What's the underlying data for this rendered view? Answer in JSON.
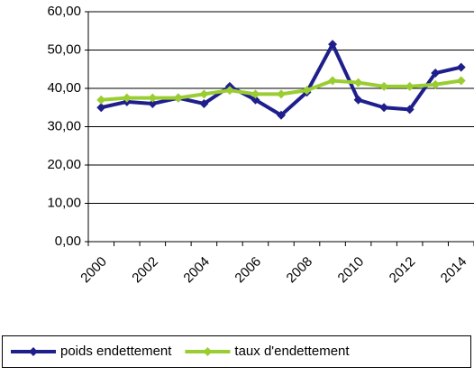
{
  "chart_data": {
    "type": "line",
    "categories": [
      "2000",
      null,
      "2002",
      null,
      "2004",
      null,
      "2006",
      null,
      "2008",
      null,
      "2010",
      null,
      "2012",
      null,
      "2014"
    ],
    "series": [
      {
        "name": "poids endettement",
        "color": "#1f1f8c",
        "values": [
          35,
          36.5,
          36,
          37.5,
          36,
          40.5,
          37,
          33,
          39,
          51.5,
          37,
          35,
          34.5,
          44,
          45.5
        ]
      },
      {
        "name": "taux d'endettement",
        "color": "#9acd32",
        "values": [
          37,
          37.5,
          37.5,
          37.5,
          38.5,
          39.5,
          38.5,
          38.5,
          39.5,
          42,
          41.5,
          40.5,
          40.5,
          41,
          42
        ]
      }
    ],
    "ylim": [
      0,
      60
    ],
    "yticks": [
      {
        "value": 0,
        "label": "0,00"
      },
      {
        "value": 10,
        "label": "10,00"
      },
      {
        "value": 20,
        "label": "20,00"
      },
      {
        "value": 30,
        "label": "30,00"
      },
      {
        "value": 40,
        "label": "40,00"
      },
      {
        "value": 50,
        "label": "50,00"
      },
      {
        "value": 60,
        "label": "60,00"
      }
    ],
    "grid": true,
    "legend": "bottom"
  }
}
